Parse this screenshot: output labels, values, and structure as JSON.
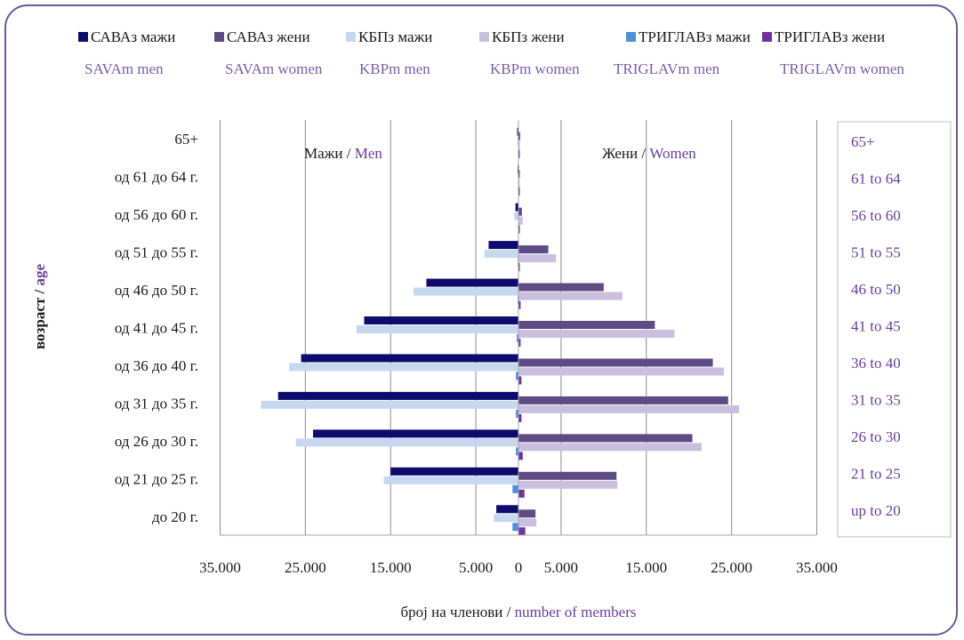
{
  "chart_data": {
    "type": "bar",
    "orientation": "horizontal",
    "layout": "population-pyramid",
    "xlabel_mk": "број на членови",
    "xlabel_en": "number of members",
    "ylabel_mk": "возраст",
    "ylabel_en": "age",
    "left_side_label_mk": "Мажи",
    "left_side_label_en": "Men",
    "right_side_label_mk": "Жени",
    "right_side_label_en": "Women",
    "separator": " / ",
    "xlim": [
      -35000,
      35000
    ],
    "x_ticks": [
      -35000,
      -25000,
      -15000,
      -5000,
      0,
      5000,
      15000,
      25000,
      35000
    ],
    "x_tick_labels": [
      "35.000",
      "25.000",
      "15.000",
      "5.000",
      "0",
      "5.000",
      "15.000",
      "25.000",
      "35.000"
    ],
    "grid": "vertical",
    "legend_position": "top",
    "categories_mk": [
      "65+",
      "од 61 до 64 г.",
      "од 56 до 60 г.",
      "од 51 до 55 г.",
      "од 46 до 50 г.",
      "од 41 до 45 г.",
      "од 36 до 40 г.",
      "од 31 до 35 г.",
      "од 26 до 30 г.",
      "од 21 до 25 г.",
      "до 20 г."
    ],
    "categories_en": [
      "65+",
      "61 to 64",
      "56 to 60",
      "51 to 55",
      "46 to 50",
      "41 to 45",
      "36 to 40",
      "31 to 35",
      "26 to 30",
      "21 to 25",
      "up to 20"
    ],
    "series": [
      {
        "name": "САВАз мажи",
        "name_en": "SAVAm men",
        "side": "left",
        "color": "#0d0b6e",
        "values": [
          150,
          100,
          350,
          3500,
          10800,
          18100,
          25500,
          28200,
          24100,
          15000,
          2600
        ]
      },
      {
        "name": "КБПз мажи",
        "name_en": "KBPm men",
        "side": "left",
        "color": "#c6d8ef",
        "values": [
          120,
          80,
          500,
          4000,
          12300,
          19000,
          26900,
          30200,
          26100,
          15800,
          2900
        ]
      },
      {
        "name": "ТРИГЛАВз мажи",
        "name_en": "TRIGLAVm men",
        "side": "left",
        "color": "#4f8fd8",
        "values": [
          50,
          30,
          50,
          80,
          100,
          200,
          300,
          300,
          300,
          700,
          700
        ]
      },
      {
        "name": "САВАз жени",
        "name_en": "SAVAm women",
        "side": "right",
        "color": "#5e4b84",
        "values": [
          200,
          150,
          400,
          3500,
          10000,
          16000,
          22800,
          24600,
          20400,
          11500,
          2000
        ]
      },
      {
        "name": "КБПз жени",
        "name_en": "KBPm women",
        "side": "right",
        "color": "#cbbfe0",
        "values": [
          150,
          120,
          500,
          4400,
          12200,
          18300,
          24100,
          25900,
          21500,
          11600,
          2100
        ]
      },
      {
        "name": "ТРИГЛАВз жени",
        "name_en": "TRIGLAVm women",
        "side": "right",
        "color": "#7030a0",
        "values": [
          150,
          100,
          100,
          150,
          250,
          250,
          350,
          350,
          500,
          700,
          800
        ]
      }
    ]
  }
}
